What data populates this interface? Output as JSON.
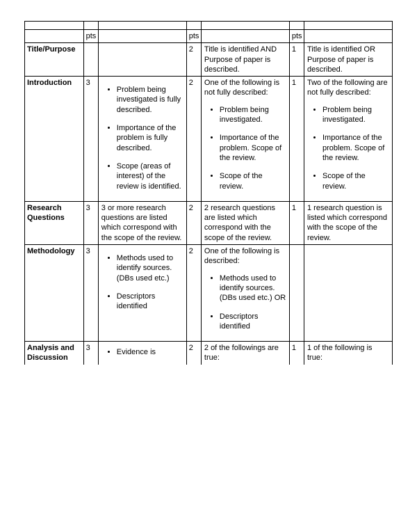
{
  "headers": {
    "pts": "pts"
  },
  "rows": {
    "title": {
      "label": "Title/Purpose",
      "c1": {
        "pts": "",
        "desc": ""
      },
      "c2": {
        "pts": "2",
        "desc": "Title is identified AND Purpose of paper is described."
      },
      "c3": {
        "pts": "1",
        "desc": "Title is identified OR Purpose of paper is described."
      }
    },
    "intro": {
      "label": "Introduction",
      "c1": {
        "pts": "3",
        "bullets": [
          "Problem being investigated is fully described.",
          "Importance of the problem is fully described.",
          "Scope (areas of interest) of the review is identified."
        ]
      },
      "c2": {
        "pts": "2",
        "lead": "One of the following is not fully described:",
        "bullets": [
          "Problem being investigated.",
          "Importance of the problem. Scope of the review.",
          "Scope of the review."
        ]
      },
      "c3": {
        "pts": "1",
        "lead": "Two of the following are not fully described:",
        "bullets": [
          "Problem being investigated.",
          "Importance of the problem. Scope of the review.",
          "Scope of the review."
        ]
      }
    },
    "rq": {
      "label": "Research Questions",
      "c1": {
        "pts": "3",
        "desc": "3 or more research questions are listed which correspond with the scope of the review."
      },
      "c2": {
        "pts": "2",
        "desc": "2 research questions are listed which correspond with the scope of the review."
      },
      "c3": {
        "pts": "1",
        "desc": "1 research question is listed which correspond with the scope of the review."
      }
    },
    "method": {
      "label": "Methodology",
      "c1": {
        "pts": "3",
        "bullets": [
          "Methods used to identify sources. (DBs used etc.)",
          "Descriptors identified"
        ]
      },
      "c2": {
        "pts": "2",
        "lead": "One of the following is described:",
        "bullets": [
          "Methods used to identify sources. (DBs used etc.) OR",
          "Descriptors identified"
        ]
      },
      "c3": {
        "pts": "",
        "desc": ""
      }
    },
    "analysis": {
      "label": "Analysis and Discussion",
      "c1": {
        "pts": "3",
        "bullets": [
          "Evidence is"
        ]
      },
      "c2": {
        "pts": "2",
        "desc": "2 of the followings are true:"
      },
      "c3": {
        "pts": "1",
        "desc": "1 of the following is true:"
      }
    }
  }
}
